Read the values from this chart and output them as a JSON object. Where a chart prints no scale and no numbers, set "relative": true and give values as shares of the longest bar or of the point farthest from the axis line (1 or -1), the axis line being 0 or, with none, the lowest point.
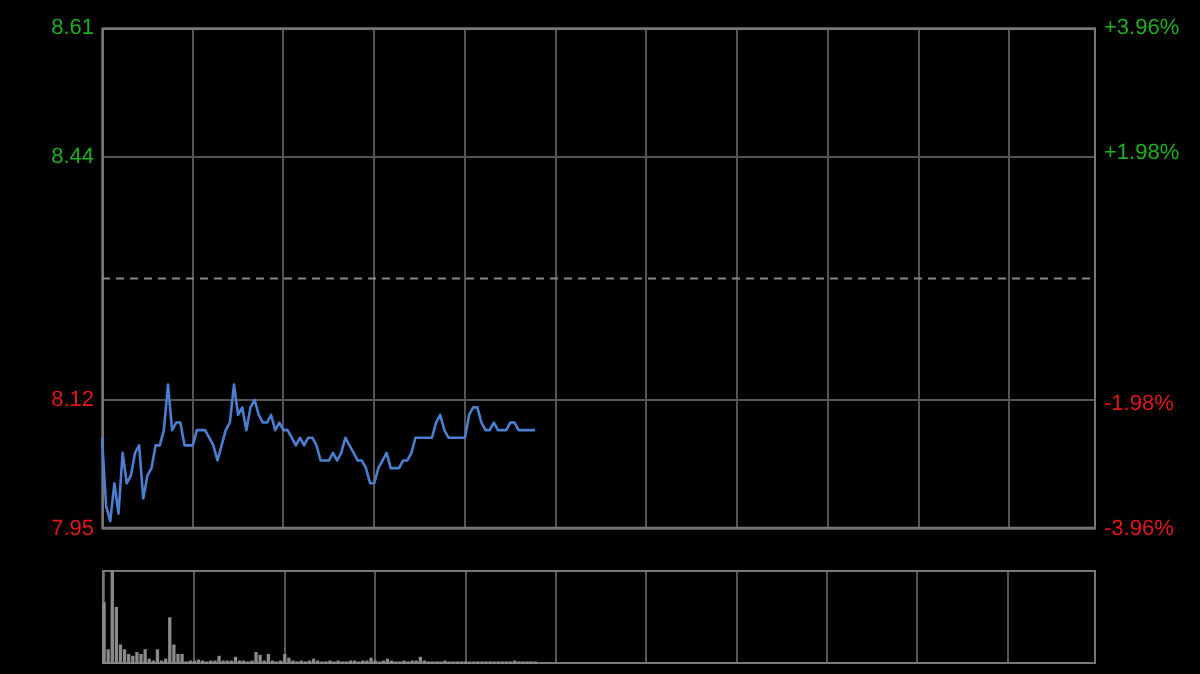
{
  "chart_data": [
    {
      "type": "line",
      "categories": [
        null,
        null,
        null,
        null,
        null,
        null,
        null,
        null,
        null,
        null,
        null,
        null,
        null,
        null,
        null,
        null,
        null,
        null,
        null,
        null,
        null,
        null,
        null,
        null,
        null,
        null,
        null,
        null,
        null,
        null,
        null,
        null,
        null,
        null,
        null,
        null,
        null,
        null,
        null,
        null,
        null,
        null,
        null,
        null,
        null,
        null,
        null,
        null,
        null,
        null,
        null,
        null,
        null,
        null,
        null,
        null,
        null,
        null,
        null,
        null,
        null,
        null,
        null,
        null,
        null,
        null,
        null,
        null,
        null,
        null,
        null,
        null,
        null,
        null,
        null,
        null,
        null,
        null,
        null,
        null,
        null,
        null,
        null,
        null,
        null,
        null,
        null,
        null,
        null,
        null,
        null,
        null,
        null,
        null,
        null,
        null,
        null,
        null,
        null,
        null,
        null,
        null,
        null,
        null,
        null,
        null,
        null,
        null,
        null,
        null,
        null,
        null,
        null,
        null,
        null,
        null,
        null,
        null,
        null,
        null,
        null,
        null,
        null,
        null,
        null,
        null,
        null,
        null,
        null,
        null,
        null,
        null,
        null,
        null,
        null,
        null,
        null,
        null,
        null,
        null,
        null,
        null,
        null,
        null,
        null,
        null,
        null,
        null,
        null,
        null,
        null,
        null,
        null,
        null,
        null,
        null,
        null,
        null,
        null,
        null,
        null,
        null,
        null,
        null,
        null,
        null,
        null,
        null,
        null,
        null,
        null,
        null,
        null,
        null,
        null,
        null,
        null,
        null,
        null,
        null,
        null,
        null,
        null,
        null,
        null,
        null,
        null,
        null,
        null,
        null,
        null,
        null,
        null,
        null,
        null,
        null,
        null,
        null,
        null,
        null,
        null,
        null,
        null,
        null,
        null,
        null,
        null,
        null,
        null,
        null,
        null,
        null,
        null,
        null,
        null,
        null,
        null,
        null,
        null,
        null,
        null,
        null,
        null,
        null,
        null,
        null,
        null,
        null,
        null,
        null,
        null,
        null,
        null,
        null,
        null,
        null,
        null,
        null,
        null,
        null,
        null,
        null
      ],
      "series": [
        {
          "color": "#4a7fd0",
          "values": [
            8.07,
            7.98,
            7.96,
            8.01,
            7.97,
            8.05,
            8.01,
            8.02,
            8.05,
            8.06,
            7.99,
            8.02,
            8.03,
            8.06,
            8.06,
            8.08,
            8.14,
            8.08,
            8.09,
            8.09,
            8.06,
            8.06,
            8.06,
            8.08,
            8.08,
            8.08,
            8.07,
            8.06,
            8.04,
            8.06,
            8.08,
            8.09,
            8.14,
            8.1,
            8.11,
            8.08,
            8.11,
            8.12,
            8.1,
            8.09,
            8.09,
            8.1,
            8.08,
            8.09,
            8.08,
            8.08,
            8.07,
            8.06,
            8.07,
            8.06,
            8.07,
            8.07,
            8.06,
            8.04,
            8.04,
            8.04,
            8.05,
            8.04,
            8.05,
            8.07,
            8.06,
            8.05,
            8.04,
            8.04,
            8.03,
            8.01,
            8.01,
            8.03,
            8.04,
            8.05,
            8.03,
            8.03,
            8.03,
            8.04,
            8.04,
            8.05,
            8.07,
            8.07,
            8.07,
            8.07,
            8.07,
            8.09,
            8.1,
            8.08,
            8.07,
            8.07,
            8.07,
            8.07,
            8.07,
            8.1,
            8.11,
            8.11,
            8.09,
            8.08,
            8.08,
            8.09,
            8.08,
            8.08,
            8.08,
            8.09,
            8.09,
            8.08,
            8.08,
            8.08,
            8.08,
            8.08,
            null,
            null,
            null,
            null,
            null,
            null,
            null,
            null,
            null,
            null,
            null,
            null,
            null,
            null,
            null,
            null,
            null,
            null,
            null,
            null,
            null,
            null,
            null,
            null,
            null,
            null,
            null,
            null,
            null,
            null,
            null,
            null,
            null,
            null,
            null,
            null,
            null,
            null,
            null,
            null,
            null,
            null,
            null,
            null,
            null,
            null,
            null,
            null,
            null,
            null,
            null,
            null,
            null,
            null,
            null,
            null,
            null,
            null,
            null,
            null,
            null,
            null,
            null,
            null,
            null,
            null,
            null,
            null,
            null,
            null,
            null,
            null,
            null,
            null,
            null,
            null,
            null,
            null,
            null,
            null,
            null,
            null,
            null,
            null,
            null,
            null,
            null,
            null,
            null,
            null,
            null,
            null,
            null,
            null,
            null,
            null,
            null,
            null,
            null,
            null,
            null,
            null,
            null,
            null,
            null,
            null,
            null,
            null,
            null,
            null,
            null,
            null,
            null,
            null,
            null,
            null,
            null,
            null,
            null,
            null,
            null,
            null,
            null,
            null,
            null,
            null,
            null,
            null,
            null,
            null,
            null,
            null,
            null,
            null,
            null,
            null
          ]
        }
      ],
      "ylim": [
        7.95,
        8.61
      ],
      "yticks": [
        7.95,
        8.12,
        8.44,
        8.61
      ],
      "y2lim": [
        -3.96,
        3.96
      ],
      "y2ticks": [
        {
          "value": -3.96,
          "label": "-3.96%"
        },
        {
          "value": -1.98,
          "label": "-1.98%"
        },
        {
          "value": 1.98,
          "label": "+1.98%"
        },
        {
          "value": 3.96,
          "label": "+3.96%"
        }
      ],
      "ref_lines": [
        {
          "axis": "y",
          "value": 8.28,
          "color": "#888888",
          "line_style": "dashed"
        }
      ],
      "grid": true,
      "legend": false,
      "marker": "none",
      "line_style": "solid"
    },
    {
      "type": "bar",
      "categories": [
        null,
        null,
        null,
        null,
        null,
        null,
        null,
        null,
        null,
        null,
        null,
        null,
        null,
        null,
        null,
        null,
        null,
        null,
        null,
        null,
        null,
        null,
        null,
        null,
        null,
        null,
        null,
        null,
        null,
        null,
        null,
        null,
        null,
        null,
        null,
        null,
        null,
        null,
        null,
        null,
        null,
        null,
        null,
        null,
        null,
        null,
        null,
        null,
        null,
        null,
        null,
        null,
        null,
        null,
        null,
        null,
        null,
        null,
        null,
        null,
        null,
        null,
        null,
        null,
        null,
        null,
        null,
        null,
        null,
        null,
        null,
        null,
        null,
        null,
        null,
        null,
        null,
        null,
        null,
        null,
        null,
        null,
        null,
        null,
        null,
        null,
        null,
        null,
        null,
        null,
        null,
        null,
        null,
        null,
        null,
        null,
        null,
        null,
        null,
        null,
        null,
        null,
        null,
        null,
        null,
        null,
        null,
        null,
        null,
        null,
        null,
        null,
        null,
        null,
        null,
        null,
        null,
        null,
        null,
        null,
        null,
        null,
        null,
        null,
        null,
        null,
        null,
        null,
        null,
        null,
        null,
        null,
        null,
        null,
        null,
        null,
        null,
        null,
        null,
        null,
        null,
        null,
        null,
        null,
        null,
        null,
        null,
        null,
        null,
        null,
        null,
        null,
        null,
        null,
        null,
        null,
        null,
        null,
        null,
        null,
        null,
        null,
        null,
        null,
        null,
        null,
        null,
        null,
        null,
        null,
        null,
        null,
        null,
        null,
        null,
        null,
        null,
        null,
        null,
        null,
        null,
        null,
        null,
        null,
        null,
        null,
        null,
        null,
        null,
        null,
        null,
        null,
        null,
        null,
        null,
        null,
        null,
        null,
        null,
        null,
        null,
        null,
        null,
        null,
        null,
        null,
        null,
        null,
        null,
        null,
        null,
        null,
        null,
        null,
        null,
        null,
        null,
        null,
        null,
        null,
        null,
        null,
        null,
        null,
        null,
        null,
        null,
        null,
        null,
        null,
        null,
        null,
        null,
        null,
        null,
        null,
        null,
        null,
        null,
        null,
        null,
        null
      ],
      "relative": true,
      "series": [
        {
          "color": "#8a8a8a",
          "values": [
            0.65,
            0.15,
            1,
            0.6,
            0.2,
            0.15,
            0.1,
            0.08,
            0.12,
            0.1,
            0.15,
            0.05,
            0.03,
            0.15,
            0.03,
            0.05,
            0.49,
            0.2,
            0.1,
            0.1,
            0.02,
            0.03,
            0.03,
            0.04,
            0.03,
            0.02,
            0.03,
            0.03,
            0.08,
            0.03,
            0.03,
            0.03,
            0.07,
            0.03,
            0.03,
            0.02,
            0.03,
            0.12,
            0.09,
            0.03,
            0.1,
            0.03,
            0.02,
            0.03,
            0.1,
            0.06,
            0.03,
            0.02,
            0.03,
            0.02,
            0.03,
            0.05,
            0.03,
            0.02,
            0.02,
            0.03,
            0.02,
            0.03,
            0.02,
            0.02,
            0.03,
            0.03,
            0.02,
            0.03,
            0.03,
            0.06,
            0.03,
            0.02,
            0.03,
            0.05,
            0.03,
            0.02,
            0.02,
            0.03,
            0.02,
            0.03,
            0.03,
            0.07,
            0.03,
            0.02,
            0.02,
            0.02,
            0.02,
            0.03,
            0.02,
            0.02,
            0.02,
            0.02,
            0.02,
            0.02,
            0.02,
            0.02,
            0.02,
            0.02,
            0.02,
            0.02,
            0.02,
            0.02,
            0.02,
            0.02,
            0.03,
            0.02,
            0.02,
            0.02,
            0.02,
            0.02,
            null,
            null,
            null,
            null,
            null,
            null,
            null,
            null,
            null,
            null,
            null,
            null,
            null,
            null,
            null,
            null,
            null,
            null,
            null,
            null,
            null,
            null,
            null,
            null,
            null,
            null,
            null,
            null,
            null,
            null,
            null,
            null,
            null,
            null,
            null,
            null,
            null,
            null,
            null,
            null,
            null,
            null,
            null,
            null,
            null,
            null,
            null,
            null,
            null,
            null,
            null,
            null,
            null,
            null,
            null,
            null,
            null,
            null,
            null,
            null,
            null,
            null,
            null,
            null,
            null,
            null,
            null,
            null,
            null,
            null,
            null,
            null,
            null,
            null,
            null,
            null,
            null,
            null,
            null,
            null,
            null,
            null,
            null,
            null,
            null,
            null,
            null,
            null,
            null,
            null,
            null,
            null,
            null,
            null,
            null,
            null,
            null,
            null,
            null,
            null,
            null,
            null,
            null,
            null,
            null,
            null,
            null,
            null,
            null,
            null,
            null,
            null,
            null,
            null,
            null,
            null,
            null,
            null,
            null,
            null,
            null,
            null,
            null,
            null,
            null,
            null,
            null,
            null,
            null,
            null,
            null,
            null,
            null,
            null,
            null,
            null
          ]
        }
      ],
      "grid": true,
      "legend": false
    }
  ]
}
